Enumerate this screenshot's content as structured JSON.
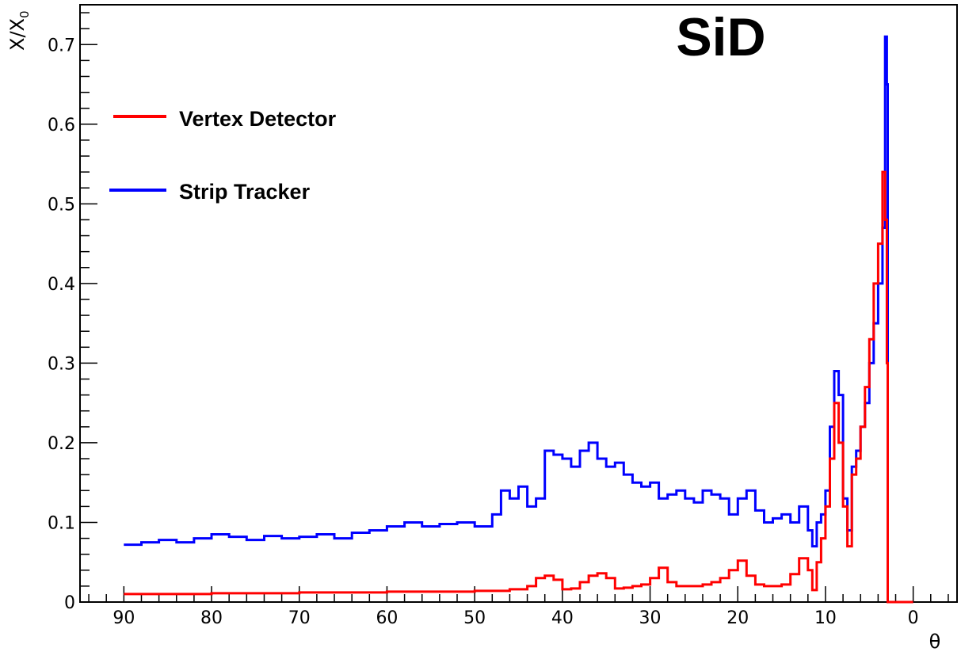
{
  "chart_data": {
    "type": "line",
    "title": "",
    "brand_label": "SiD",
    "xlabel": "θ",
    "ylabel_main": "X/X",
    "ylabel_sub": "0",
    "x_reversed": true,
    "xlim": [
      95,
      -5
    ],
    "ylim": [
      0,
      0.75
    ],
    "x_ticks": [
      "90",
      "80",
      "70",
      "60",
      "50",
      "40",
      "30",
      "20",
      "10",
      "0"
    ],
    "y_ticks": [
      "0",
      "0.1",
      "0.2",
      "0.3",
      "0.4",
      "0.5",
      "0.6",
      "0.7"
    ],
    "grid": false,
    "legend_position": "top-left",
    "series": [
      {
        "name": "Vertex Detector",
        "color": "#ff0000",
        "x": [
          90,
          80,
          70,
          60,
          50,
          46,
          44,
          43,
          42,
          41,
          40,
          39,
          38,
          37,
          36,
          35,
          34,
          33,
          32,
          31,
          30,
          29,
          28,
          27,
          26,
          25,
          24,
          23,
          22,
          21,
          20,
          19,
          18,
          17,
          16,
          15,
          14,
          13,
          12,
          11.5,
          11,
          10.5,
          10,
          9.5,
          9,
          8.5,
          8,
          7.5,
          7,
          6.5,
          6,
          5.5,
          5,
          4.5,
          4,
          3.5,
          3.2,
          3.0,
          2.9,
          2.7,
          2.5,
          2.0,
          0
        ],
        "y": [
          0.01,
          0.011,
          0.012,
          0.013,
          0.014,
          0.016,
          0.02,
          0.03,
          0.033,
          0.028,
          0.016,
          0.017,
          0.025,
          0.033,
          0.036,
          0.03,
          0.017,
          0.018,
          0.02,
          0.022,
          0.03,
          0.043,
          0.025,
          0.02,
          0.02,
          0.02,
          0.022,
          0.025,
          0.03,
          0.04,
          0.052,
          0.033,
          0.022,
          0.02,
          0.02,
          0.022,
          0.035,
          0.055,
          0.04,
          0.015,
          0.05,
          0.08,
          0.12,
          0.18,
          0.25,
          0.2,
          0.12,
          0.07,
          0.16,
          0.18,
          0.22,
          0.27,
          0.33,
          0.4,
          0.45,
          0.54,
          0.48,
          0.3,
          0.0,
          0.0,
          0.0,
          0.0,
          0.0
        ]
      },
      {
        "name": "Strip Tracker",
        "color": "#0000ff",
        "x": [
          90,
          88,
          86,
          84,
          82,
          80,
          78,
          76,
          74,
          72,
          70,
          68,
          66,
          64,
          62,
          60,
          58,
          56,
          54,
          52,
          50,
          48,
          47,
          46,
          45,
          44,
          43,
          42,
          41,
          40,
          39,
          38,
          37,
          36,
          35,
          34,
          33,
          32,
          31,
          30,
          29,
          28,
          27,
          26,
          25,
          24,
          23,
          22,
          21,
          20,
          19,
          18,
          17,
          16,
          15,
          14,
          13,
          12,
          11.5,
          11,
          10.5,
          10,
          9.5,
          9,
          8.5,
          8,
          7.5,
          7,
          6.5,
          6,
          5.5,
          5,
          4.5,
          4,
          3.5,
          3.2,
          3.0,
          2.9,
          2.7,
          2.5,
          2.0,
          0
        ],
        "y": [
          0.072,
          0.075,
          0.078,
          0.075,
          0.08,
          0.085,
          0.082,
          0.078,
          0.083,
          0.08,
          0.082,
          0.085,
          0.08,
          0.087,
          0.09,
          0.095,
          0.1,
          0.095,
          0.098,
          0.1,
          0.095,
          0.11,
          0.14,
          0.13,
          0.145,
          0.12,
          0.13,
          0.19,
          0.185,
          0.18,
          0.17,
          0.19,
          0.2,
          0.18,
          0.17,
          0.175,
          0.16,
          0.15,
          0.145,
          0.15,
          0.13,
          0.135,
          0.14,
          0.13,
          0.125,
          0.14,
          0.135,
          0.13,
          0.11,
          0.13,
          0.14,
          0.115,
          0.1,
          0.105,
          0.11,
          0.1,
          0.12,
          0.09,
          0.07,
          0.1,
          0.11,
          0.14,
          0.22,
          0.29,
          0.26,
          0.13,
          0.09,
          0.17,
          0.19,
          0.22,
          0.25,
          0.3,
          0.35,
          0.4,
          0.47,
          0.71,
          0.65,
          0.0,
          0.0,
          0.0,
          0.0,
          0.0
        ]
      }
    ]
  }
}
